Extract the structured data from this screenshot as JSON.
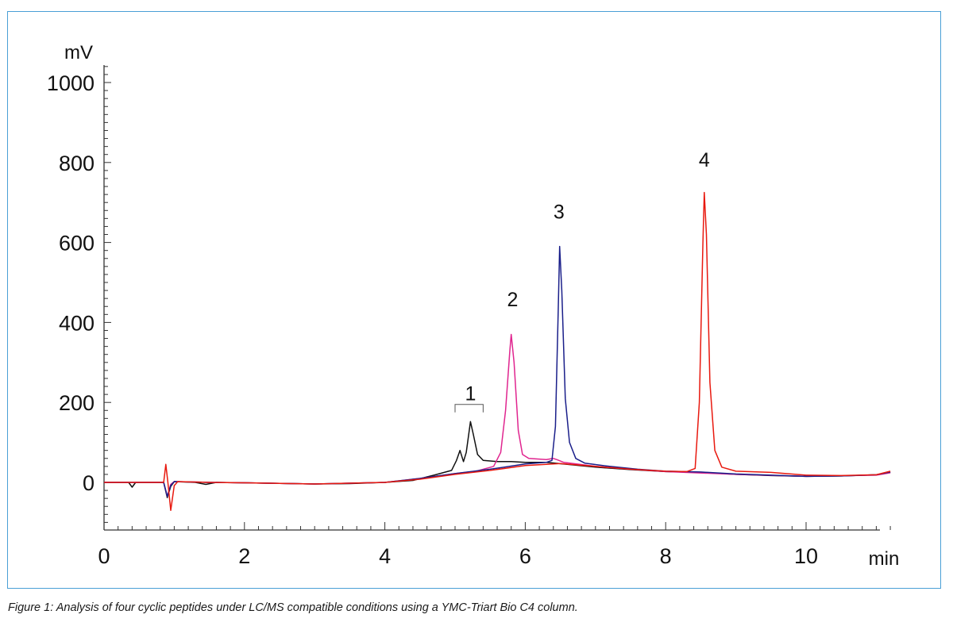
{
  "caption": "Figure 1: Analysis of four cyclic peptides under LC/MS compatible conditions using a YMC-Triart Bio C4 column.",
  "chart_data": {
    "type": "line",
    "title": "",
    "xlabel": "min",
    "ylabel": "mV",
    "xlim": [
      0,
      11.2
    ],
    "ylim": [
      -120,
      1050
    ],
    "x_ticks": [
      0,
      2,
      4,
      6,
      8,
      10
    ],
    "y_ticks": [
      0,
      200,
      400,
      600,
      800,
      1000
    ],
    "grid": false,
    "legend": "none",
    "peak_labels": [
      {
        "text": "1",
        "x": 5.22,
        "y": 205
      },
      {
        "text": "2",
        "x": 5.82,
        "y": 440
      },
      {
        "text": "3",
        "x": 6.48,
        "y": 660
      },
      {
        "text": "4",
        "x": 8.55,
        "y": 790
      }
    ],
    "bracket": {
      "x_start": 5.0,
      "x_end": 5.4,
      "y": 195
    },
    "series": [
      {
        "color": "#111111",
        "points": [
          [
            0,
            0
          ],
          [
            0.35,
            0
          ],
          [
            0.4,
            -12
          ],
          [
            0.45,
            0
          ],
          [
            0.85,
            0
          ],
          [
            0.9,
            -38
          ],
          [
            0.95,
            -10
          ],
          [
            1.0,
            2
          ],
          [
            1.3,
            0
          ],
          [
            1.45,
            -5
          ],
          [
            1.6,
            0
          ],
          [
            2,
            -1
          ],
          [
            3,
            -4
          ],
          [
            3.5,
            -3
          ],
          [
            4,
            0
          ],
          [
            4.4,
            5
          ],
          [
            4.7,
            18
          ],
          [
            4.95,
            30
          ],
          [
            5.02,
            55
          ],
          [
            5.07,
            80
          ],
          [
            5.12,
            52
          ],
          [
            5.16,
            75
          ],
          [
            5.22,
            152
          ],
          [
            5.26,
            120
          ],
          [
            5.32,
            70
          ],
          [
            5.4,
            55
          ],
          [
            5.6,
            52
          ],
          [
            5.8,
            52
          ],
          [
            6.0,
            50
          ],
          [
            6.3,
            50
          ],
          [
            6.6,
            45
          ],
          [
            7.0,
            38
          ],
          [
            7.5,
            32
          ],
          [
            8,
            27
          ],
          [
            8.5,
            25
          ],
          [
            9,
            20
          ],
          [
            9.5,
            17
          ],
          [
            10,
            15
          ],
          [
            10.5,
            16
          ],
          [
            11,
            19
          ],
          [
            11.2,
            25
          ]
        ]
      },
      {
        "color": "#e0258f",
        "points": [
          [
            0,
            0
          ],
          [
            0.85,
            0
          ],
          [
            0.9,
            -35
          ],
          [
            0.95,
            -5
          ],
          [
            1.0,
            2
          ],
          [
            1.5,
            0
          ],
          [
            2,
            -1
          ],
          [
            3,
            -4
          ],
          [
            4,
            0
          ],
          [
            4.5,
            10
          ],
          [
            5.0,
            22
          ],
          [
            5.3,
            28
          ],
          [
            5.55,
            40
          ],
          [
            5.65,
            75
          ],
          [
            5.72,
            180
          ],
          [
            5.78,
            330
          ],
          [
            5.8,
            370
          ],
          [
            5.84,
            300
          ],
          [
            5.9,
            130
          ],
          [
            5.96,
            70
          ],
          [
            6.05,
            60
          ],
          [
            6.3,
            57
          ],
          [
            6.4,
            60
          ],
          [
            6.45,
            57
          ],
          [
            6.55,
            50
          ],
          [
            7.0,
            40
          ],
          [
            7.5,
            33
          ],
          [
            8,
            27
          ],
          [
            9,
            20
          ],
          [
            10,
            15
          ],
          [
            11,
            18
          ],
          [
            11.2,
            24
          ]
        ]
      },
      {
        "color": "#1a1f8a",
        "points": [
          [
            0,
            0
          ],
          [
            0.85,
            0
          ],
          [
            0.9,
            -35
          ],
          [
            0.95,
            -8
          ],
          [
            1.0,
            2
          ],
          [
            1.5,
            0
          ],
          [
            2,
            -1
          ],
          [
            3,
            -4
          ],
          [
            4,
            0
          ],
          [
            4.5,
            10
          ],
          [
            5.0,
            22
          ],
          [
            5.5,
            33
          ],
          [
            6.0,
            46
          ],
          [
            6.3,
            50
          ],
          [
            6.38,
            55
          ],
          [
            6.43,
            140
          ],
          [
            6.47,
            430
          ],
          [
            6.49,
            590
          ],
          [
            6.52,
            480
          ],
          [
            6.57,
            210
          ],
          [
            6.63,
            100
          ],
          [
            6.72,
            60
          ],
          [
            6.85,
            48
          ],
          [
            7.2,
            40
          ],
          [
            7.6,
            33
          ],
          [
            8,
            28
          ],
          [
            8.5,
            26
          ],
          [
            9,
            21
          ],
          [
            9.5,
            18
          ],
          [
            10,
            15
          ],
          [
            10.5,
            16
          ],
          [
            11,
            19
          ],
          [
            11.2,
            26
          ]
        ]
      },
      {
        "color": "#e8190f",
        "points": [
          [
            0,
            0
          ],
          [
            0.85,
            0
          ],
          [
            0.88,
            45
          ],
          [
            0.91,
            0
          ],
          [
            0.95,
            -70
          ],
          [
            1.0,
            -8
          ],
          [
            1.05,
            2
          ],
          [
            1.5,
            0
          ],
          [
            2,
            -1
          ],
          [
            3,
            -4
          ],
          [
            4,
            0
          ],
          [
            4.5,
            8
          ],
          [
            5.0,
            20
          ],
          [
            5.5,
            30
          ],
          [
            6.0,
            42
          ],
          [
            6.5,
            47
          ],
          [
            7.0,
            40
          ],
          [
            7.5,
            33
          ],
          [
            8,
            28
          ],
          [
            8.3,
            27
          ],
          [
            8.42,
            35
          ],
          [
            8.48,
            200
          ],
          [
            8.53,
            600
          ],
          [
            8.55,
            725
          ],
          [
            8.58,
            620
          ],
          [
            8.63,
            250
          ],
          [
            8.7,
            80
          ],
          [
            8.8,
            38
          ],
          [
            9.0,
            28
          ],
          [
            9.5,
            25
          ],
          [
            10,
            18
          ],
          [
            10.5,
            17
          ],
          [
            11,
            19
          ],
          [
            11.2,
            28
          ]
        ]
      }
    ]
  }
}
